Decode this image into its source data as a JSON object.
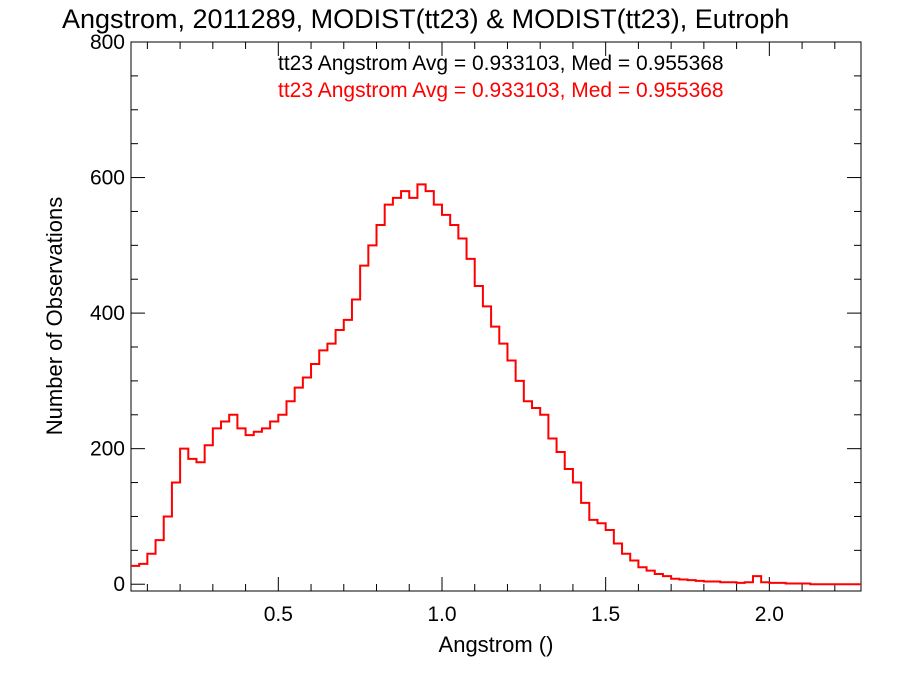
{
  "chart_data": {
    "type": "line",
    "title": "Angstrom, 2011289, MODIST(tt23) & MODIST(tt23), Eutroph",
    "xlabel": "Angstrom ()",
    "ylabel": "Number of Observations",
    "xlim": [
      0.05,
      2.28
    ],
    "ylim": [
      -10,
      800
    ],
    "xticks": [
      0.5,
      1.0,
      1.5,
      2.0
    ],
    "xtick_labels": [
      "0.5",
      "1.0",
      "1.5",
      "2.0"
    ],
    "yticks": [
      0,
      200,
      400,
      600,
      800
    ],
    "ytick_labels": [
      "0",
      "200",
      "400",
      "600",
      "800"
    ],
    "grid": false,
    "stepped": true,
    "annotations": [
      {
        "text": "tt23 Angstrom Avg = 0.933103, Med = 0.955368",
        "color": "#000000"
      },
      {
        "text": "tt23 Angstrom Avg = 0.933103, Med = 0.955368",
        "color": "#ff0000"
      }
    ],
    "series": [
      {
        "color": "#ff0000",
        "x": [
          0.05,
          0.075,
          0.1,
          0.125,
          0.15,
          0.175,
          0.2,
          0.225,
          0.25,
          0.275,
          0.3,
          0.325,
          0.35,
          0.375,
          0.4,
          0.425,
          0.45,
          0.475,
          0.5,
          0.525,
          0.55,
          0.575,
          0.6,
          0.625,
          0.65,
          0.675,
          0.7,
          0.725,
          0.75,
          0.775,
          0.8,
          0.825,
          0.85,
          0.875,
          0.9,
          0.925,
          0.95,
          0.975,
          1.0,
          1.025,
          1.05,
          1.075,
          1.1,
          1.125,
          1.15,
          1.175,
          1.2,
          1.225,
          1.25,
          1.275,
          1.3,
          1.325,
          1.35,
          1.375,
          1.4,
          1.425,
          1.45,
          1.475,
          1.5,
          1.525,
          1.55,
          1.575,
          1.6,
          1.625,
          1.65,
          1.675,
          1.7,
          1.725,
          1.75,
          1.775,
          1.8,
          1.825,
          1.85,
          1.875,
          1.9,
          1.925,
          1.95,
          1.975,
          2.0,
          2.025,
          2.05,
          2.075,
          2.1,
          2.125,
          2.15,
          2.175,
          2.2,
          2.225,
          2.25,
          2.275
        ],
        "values": [
          27,
          30,
          45,
          65,
          100,
          150,
          200,
          185,
          180,
          205,
          230,
          240,
          250,
          230,
          220,
          225,
          230,
          240,
          250,
          270,
          290,
          305,
          325,
          345,
          355,
          375,
          390,
          420,
          470,
          500,
          530,
          560,
          570,
          580,
          570,
          590,
          580,
          560,
          545,
          530,
          510,
          480,
          440,
          410,
          380,
          355,
          330,
          300,
          270,
          260,
          250,
          215,
          195,
          170,
          150,
          120,
          95,
          90,
          80,
          60,
          45,
          35,
          25,
          20,
          15,
          12,
          8,
          7,
          6,
          5,
          4,
          4,
          3,
          3,
          2,
          3,
          12,
          3,
          2,
          2,
          1,
          1,
          1,
          0,
          0,
          0,
          0,
          0,
          0,
          0
        ]
      }
    ]
  }
}
